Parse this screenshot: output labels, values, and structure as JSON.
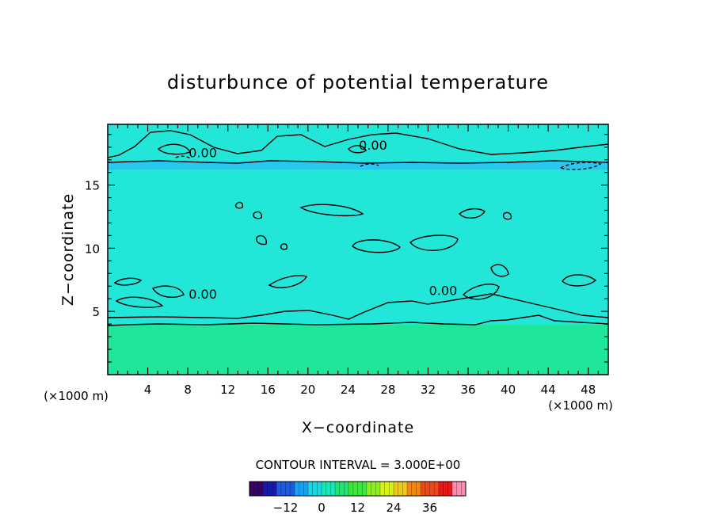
{
  "chart_data": {
    "type": "heatmap",
    "title": "disturbunce of potential temperature",
    "xlabel": "X−coordinate",
    "ylabel": "Z−coordinate",
    "x_unit_left": "(×1000 m)",
    "x_unit_right": "(×1000 m)",
    "xlim": [
      0,
      50
    ],
    "ylim": [
      0,
      19.8
    ],
    "x_ticks": [
      4,
      8,
      12,
      16,
      20,
      24,
      28,
      32,
      36,
      40,
      44,
      48
    ],
    "y_ticks": [
      5,
      10,
      15
    ],
    "contour_interval_label": "CONTOUR INTERVAL = 3.000E+00",
    "contour_labels": [
      {
        "text": "0.00",
        "x": 9.5,
        "z": 17.2
      },
      {
        "text": "0.00",
        "x": 26.5,
        "z": 17.8
      },
      {
        "text": "0.00",
        "x": 9.5,
        "z": 6.0
      },
      {
        "text": "0.00",
        "x": 33.5,
        "z": 6.3
      }
    ],
    "field_layers": [
      {
        "name": "lower layer",
        "z": [
          0,
          4.0
        ],
        "value": 3
      },
      {
        "name": "middle layer",
        "z": [
          4.0,
          16.2
        ],
        "value": 0
      },
      {
        "name": "tropopause band",
        "z": [
          16.2,
          16.9
        ],
        "value": -1.5
      },
      {
        "name": "upper layer",
        "z": [
          16.9,
          19.8
        ],
        "value": 0
      }
    ],
    "colorbar": {
      "ticks": [
        -12,
        0,
        12,
        24,
        36
      ],
      "tick_labels": [
        "−12",
        "0",
        "12",
        "24",
        "36"
      ],
      "range": [
        -24,
        48
      ],
      "colors": [
        "#3a0066",
        "#1a1aa8",
        "#1e5ae6",
        "#1aa0f0",
        "#16d8e6",
        "#18e6b4",
        "#20e670",
        "#40e640",
        "#8cf020",
        "#d6f020",
        "#f0c818",
        "#f08818",
        "#f04818",
        "#e61818",
        "#ff8cb4"
      ]
    }
  }
}
